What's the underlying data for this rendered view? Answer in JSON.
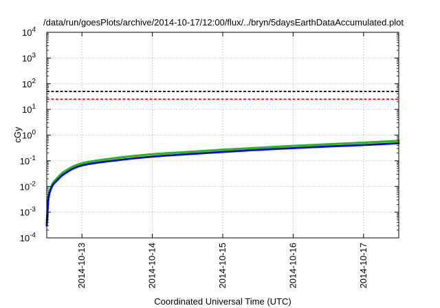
{
  "chart_data": {
    "type": "line",
    "title": "/data/run/goesPlots/archive/2014-10-17/12:00/flux/../bryn/5daysEarthDataAccumulated.plot",
    "xlabel": "Coordinated Universal Time (UTC)",
    "ylabel": "cGy",
    "yscale": "log",
    "ylim": [
      0.0001,
      10000
    ],
    "xlim": [
      "2014-10-12T12:00",
      "2014-10-17T12:00"
    ],
    "grid": true,
    "y_ticks": [
      {
        "value": 0.0001,
        "base": "10",
        "exp": "-4"
      },
      {
        "value": 0.001,
        "base": "10",
        "exp": "-3"
      },
      {
        "value": 0.01,
        "base": "10",
        "exp": "-2"
      },
      {
        "value": 0.1,
        "base": "10",
        "exp": "-1"
      },
      {
        "value": 1,
        "base": "10",
        "exp": "0"
      },
      {
        "value": 10,
        "base": "10",
        "exp": "1"
      },
      {
        "value": 100,
        "base": "10",
        "exp": "2"
      },
      {
        "value": 1000,
        "base": "10",
        "exp": "3"
      },
      {
        "value": 10000,
        "base": "10",
        "exp": "4"
      }
    ],
    "x_ticks": [
      {
        "value": "2014-10-13T00:00",
        "label": "2014-10-13"
      },
      {
        "value": "2014-10-14T00:00",
        "label": "2014-10-14"
      },
      {
        "value": "2014-10-15T00:00",
        "label": "2014-10-15"
      },
      {
        "value": "2014-10-16T00:00",
        "label": "2014-10-16"
      },
      {
        "value": "2014-10-17T00:00",
        "label": "2014-10-17"
      }
    ],
    "reference_lines": [
      {
        "y": 50,
        "color": "#000000",
        "style": "dashed"
      },
      {
        "y": 25,
        "color": "#ff0000",
        "style": "dashed"
      }
    ],
    "series": [
      {
        "color": "#ffd400",
        "x": [
          "2014-10-12T12:00",
          "2014-10-12T12:30",
          "2014-10-12T13:00",
          "2014-10-12T14:00",
          "2014-10-12T15:00",
          "2014-10-12T18:00",
          "2014-10-13T00:00",
          "2014-10-13T12:00",
          "2014-10-14T00:00",
          "2014-10-14T12:00",
          "2014-10-15T00:00",
          "2014-10-15T12:00",
          "2014-10-16T00:00",
          "2014-10-16T12:00",
          "2014-10-17T00:00",
          "2014-10-17T12:00"
        ],
        "values": [
          0.0004,
          0.003,
          0.0065,
          0.0125,
          0.0175,
          0.036,
          0.076,
          0.125,
          0.17,
          0.21,
          0.26,
          0.31,
          0.36,
          0.42,
          0.48,
          0.56
        ]
      },
      {
        "color": "#22bb22",
        "x": [
          "2014-10-12T12:00",
          "2014-10-12T12:30",
          "2014-10-12T13:00",
          "2014-10-12T14:00",
          "2014-10-12T15:00",
          "2014-10-12T18:00",
          "2014-10-13T00:00",
          "2014-10-13T12:00",
          "2014-10-14T00:00",
          "2014-10-14T12:00",
          "2014-10-15T00:00",
          "2014-10-15T12:00",
          "2014-10-16T00:00",
          "2014-10-16T12:00",
          "2014-10-17T00:00",
          "2014-10-17T12:00"
        ],
        "values": [
          0.0004,
          0.0032,
          0.0068,
          0.013,
          0.018,
          0.038,
          0.08,
          0.13,
          0.18,
          0.22,
          0.27,
          0.32,
          0.38,
          0.44,
          0.51,
          0.6
        ]
      },
      {
        "color": "#0000ff",
        "x": [
          "2014-10-12T12:00",
          "2014-10-12T12:30",
          "2014-10-12T13:00",
          "2014-10-12T14:00",
          "2014-10-12T15:00",
          "2014-10-12T18:00",
          "2014-10-13T00:00",
          "2014-10-13T12:00",
          "2014-10-14T00:00",
          "2014-10-14T12:00",
          "2014-10-15T00:00",
          "2014-10-15T12:00",
          "2014-10-16T00:00",
          "2014-10-16T12:00",
          "2014-10-17T00:00",
          "2014-10-17T12:00"
        ],
        "values": [
          0.0003,
          0.0026,
          0.0058,
          0.011,
          0.015,
          0.031,
          0.066,
          0.105,
          0.145,
          0.18,
          0.22,
          0.265,
          0.31,
          0.36,
          0.41,
          0.48
        ]
      }
    ]
  }
}
